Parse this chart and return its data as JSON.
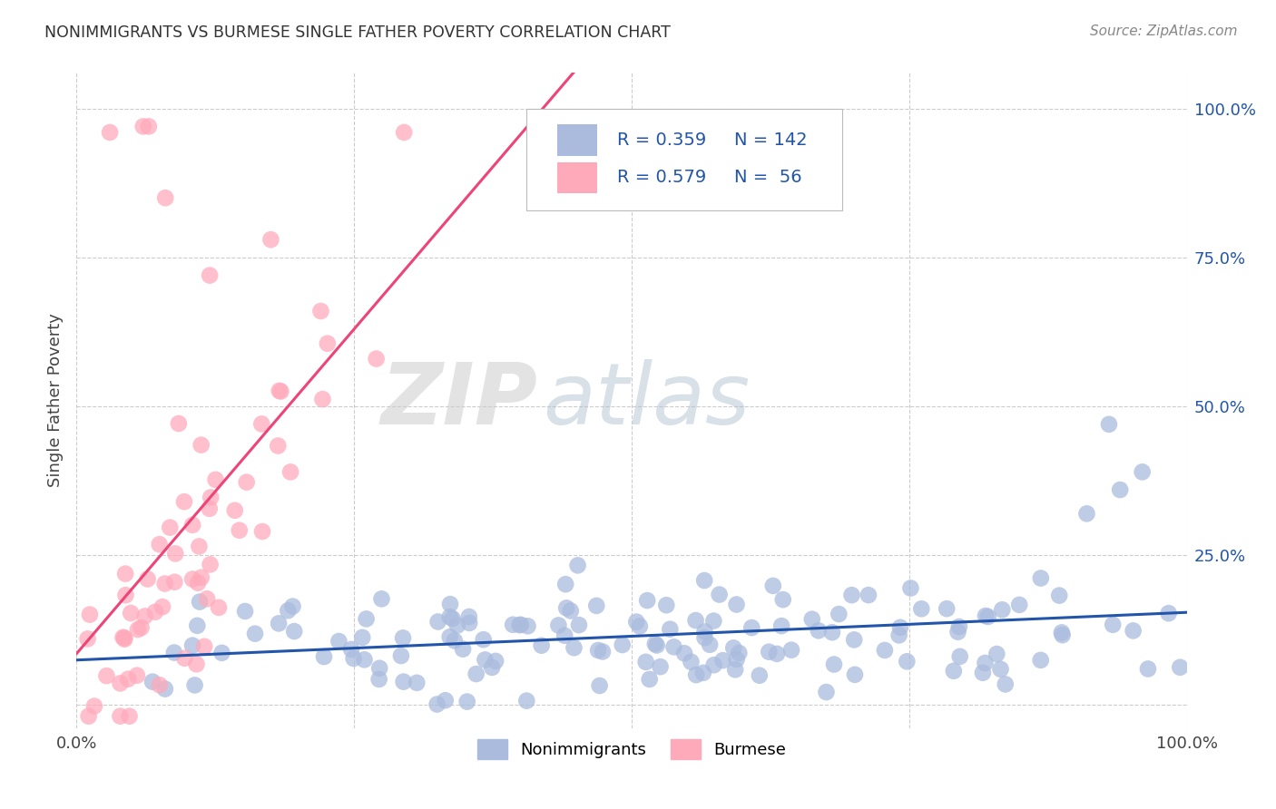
{
  "title": "NONIMMIGRANTS VS BURMESE SINGLE FATHER POVERTY CORRELATION CHART",
  "source": "Source: ZipAtlas.com",
  "ylabel": "Single Father Poverty",
  "y_tick_labels_right": [
    "100.0%",
    "75.0%",
    "50.0%",
    "25.0%"
  ],
  "blue_color": "#AABBDD",
  "pink_color": "#FFAABB",
  "blue_line_color": "#2255AA",
  "pink_line_color": "#EE4477",
  "blue_R": 0.359,
  "blue_N": 142,
  "pink_R": 0.579,
  "pink_N": 56,
  "watermark_zip": "ZIP",
  "watermark_atlas": "atlas",
  "background_color": "#FFFFFF",
  "grid_color": "#CCCCCC",
  "title_color": "#333333",
  "source_color": "#888888",
  "legend_R1": "R = 0.359",
  "legend_N1": "N = 142",
  "legend_R2": "R = 0.579",
  "legend_N2": "N =  56",
  "legend_text_color": "#222222",
  "legend_rn_color": "#2255AA"
}
